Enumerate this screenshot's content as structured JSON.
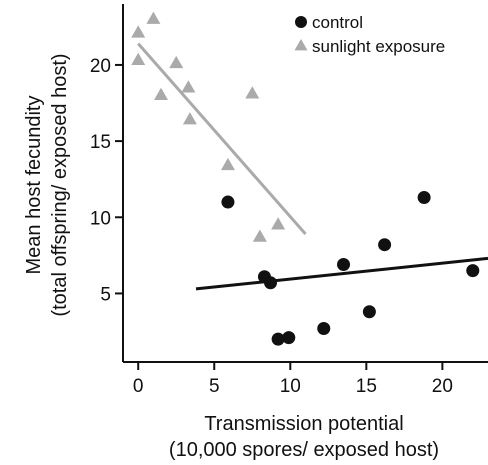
{
  "chart_data": {
    "type": "scatter",
    "xlabel": [
      "Transmission potential",
      "(10,000 spores/ exposed host)"
    ],
    "ylabel": [
      "Mean host fecundity",
      "(total offspring/ exposed host)"
    ],
    "xlim": [
      -1,
      23
    ],
    "ylim": [
      0.5,
      24
    ],
    "x_ticks": [
      "0",
      "5",
      "10",
      "15",
      "20"
    ],
    "y_ticks": [
      "5",
      "10",
      "15",
      "20"
    ],
    "grid": false,
    "legend_position": "top-right",
    "series": [
      {
        "name": "control",
        "marker": "circle",
        "color": "#111111",
        "points": [
          [
            5.9,
            11.0
          ],
          [
            8.3,
            6.1
          ],
          [
            8.7,
            5.7
          ],
          [
            9.2,
            2.0
          ],
          [
            9.9,
            2.1
          ],
          [
            12.2,
            2.7
          ],
          [
            13.5,
            6.9
          ],
          [
            15.2,
            3.8
          ],
          [
            16.2,
            8.2
          ],
          [
            18.8,
            11.3
          ],
          [
            22.0,
            6.5
          ]
        ],
        "fit_line": [
          [
            3.8,
            5.3
          ],
          [
            23.0,
            7.3
          ]
        ]
      },
      {
        "name": "sunlight exposure",
        "marker": "triangle",
        "color": "#aaaaaa",
        "points": [
          [
            0.0,
            22.1
          ],
          [
            0.0,
            20.3
          ],
          [
            1.0,
            23.0
          ],
          [
            1.5,
            18.0
          ],
          [
            2.5,
            20.1
          ],
          [
            3.3,
            18.5
          ],
          [
            3.4,
            16.4
          ],
          [
            5.9,
            13.4
          ],
          [
            7.5,
            18.1
          ],
          [
            8.0,
            8.7
          ],
          [
            9.2,
            9.5
          ]
        ],
        "fit_line": [
          [
            0.0,
            21.4
          ],
          [
            11.0,
            8.9
          ]
        ]
      }
    ]
  }
}
